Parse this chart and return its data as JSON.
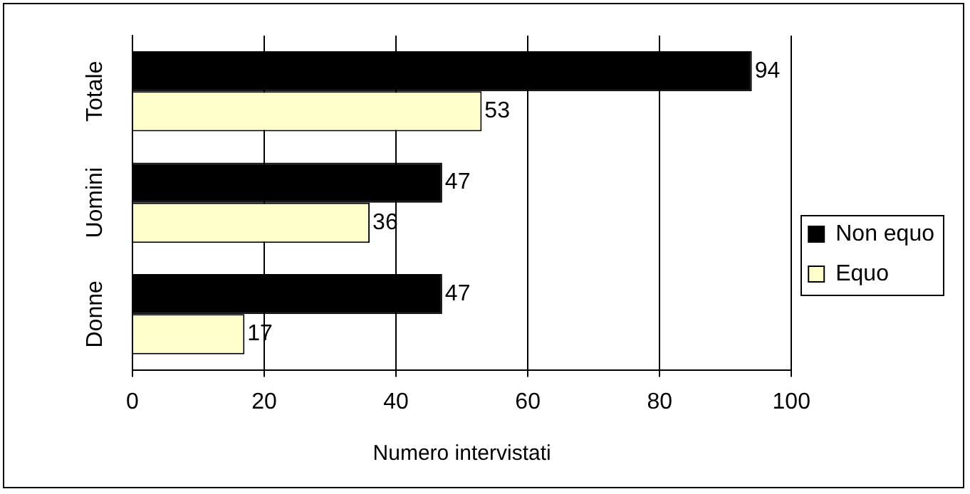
{
  "chart_data": {
    "type": "bar",
    "orientation": "horizontal",
    "xlabel": "Numero intervistati",
    "categories": [
      "Totale",
      "Uomini",
      "Donne"
    ],
    "series": [
      {
        "name": "Non equo",
        "color": "#000000",
        "values": [
          94,
          47,
          47
        ]
      },
      {
        "name": "Equo",
        "color": "#ffffcc",
        "values": [
          53,
          36,
          17
        ]
      }
    ],
    "xlim": [
      0,
      100
    ],
    "xticks": [
      0,
      20,
      40,
      60,
      80,
      100
    ],
    "grid": "x",
    "legend": "right",
    "data_labels": true
  }
}
